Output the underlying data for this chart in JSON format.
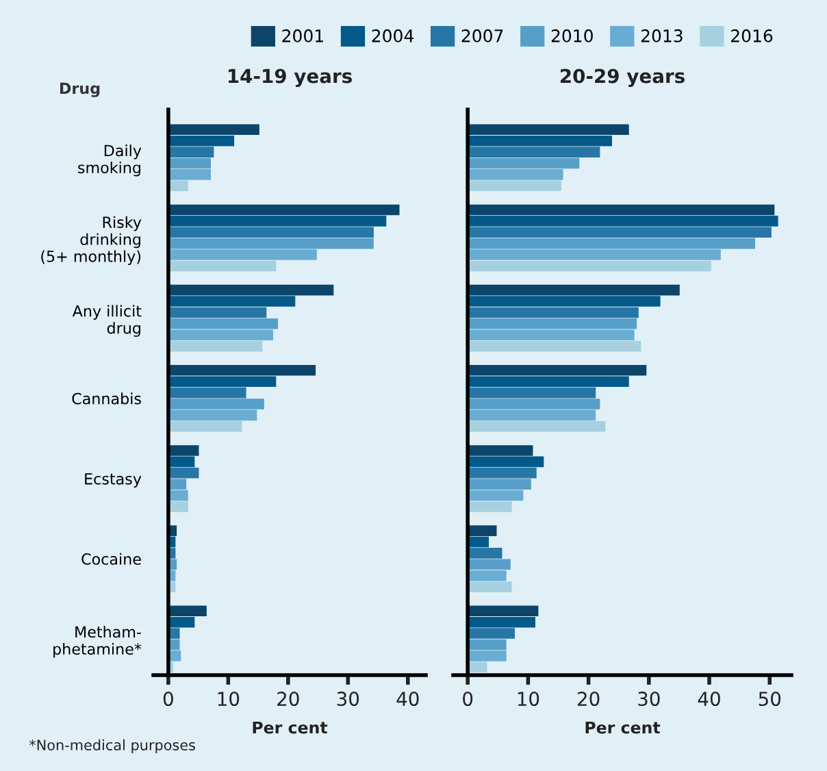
{
  "chart_data": [
    {
      "type": "bar",
      "orientation": "horizontal",
      "title": "14-19 years",
      "xlabel": "Per cent",
      "ylabel": "Drug",
      "categories": [
        "Daily\nsmoking",
        "Risky\ndrinking\n(5+ monthly)",
        "Any illicit\ndrug",
        "Cannabis",
        "Ecstasy",
        "Cocaine",
        "Metham-\nphetamine*"
      ],
      "series": [
        {
          "name": "2001",
          "color": "#0d4469",
          "values": [
            15.2,
            38.6,
            27.6,
            24.6,
            5.1,
            1.4,
            6.4
          ]
        },
        {
          "name": "2004",
          "color": "#035a8a",
          "values": [
            11.0,
            36.4,
            21.2,
            18.0,
            4.4,
            1.2,
            4.4
          ]
        },
        {
          "name": "2007",
          "color": "#2776a6",
          "values": [
            7.6,
            34.3,
            16.4,
            13.0,
            5.1,
            1.2,
            1.9
          ]
        },
        {
          "name": "2010",
          "color": "#579fc8",
          "values": [
            7.1,
            34.3,
            18.3,
            16.0,
            3.0,
            1.4,
            1.9
          ]
        },
        {
          "name": "2013",
          "color": "#6aadd2",
          "values": [
            7.1,
            24.8,
            17.5,
            14.8,
            3.3,
            1.2,
            2.1
          ]
        },
        {
          "name": "2016",
          "color": "#a6d0e0",
          "values": [
            3.3,
            18.0,
            15.7,
            12.3,
            3.3,
            1.2,
            0.8
          ]
        }
      ],
      "xlim": [
        -2.5,
        43
      ],
      "xticks": [
        0,
        10,
        20,
        30,
        40
      ],
      "legend": "top",
      "annotations": [
        "*Non-medical purposes"
      ]
    },
    {
      "type": "bar",
      "orientation": "horizontal",
      "title": "20-29 years",
      "xlabel": "Per cent",
      "categories": [
        null,
        null,
        null,
        null,
        null,
        null,
        null
      ],
      "series": [
        {
          "color": "#0d4469",
          "values": [
            26.7,
            50.8,
            35.1,
            29.6,
            10.8,
            4.8,
            11.7
          ]
        },
        {
          "color": "#035a8a",
          "values": [
            23.9,
            51.4,
            31.9,
            26.7,
            12.6,
            3.5,
            11.2
          ]
        },
        {
          "color": "#2776a6",
          "values": [
            21.9,
            50.3,
            28.3,
            21.2,
            11.4,
            5.7,
            7.8
          ]
        },
        {
          "color": "#579fc8",
          "values": [
            18.5,
            47.6,
            28.0,
            21.9,
            10.5,
            7.1,
            6.4
          ]
        },
        {
          "color": "#6aadd2",
          "values": [
            15.8,
            41.9,
            27.6,
            21.2,
            9.2,
            6.4,
            6.4
          ]
        },
        {
          "color": "#a6d0e0",
          "values": [
            15.5,
            40.3,
            28.7,
            22.8,
            7.3,
            7.3,
            3.2
          ]
        }
      ],
      "xlim": [
        -2.4,
        53.6
      ],
      "xticks": [
        0,
        10,
        20,
        30,
        40,
        50
      ],
      "tick_labels": "x"
    }
  ]
}
